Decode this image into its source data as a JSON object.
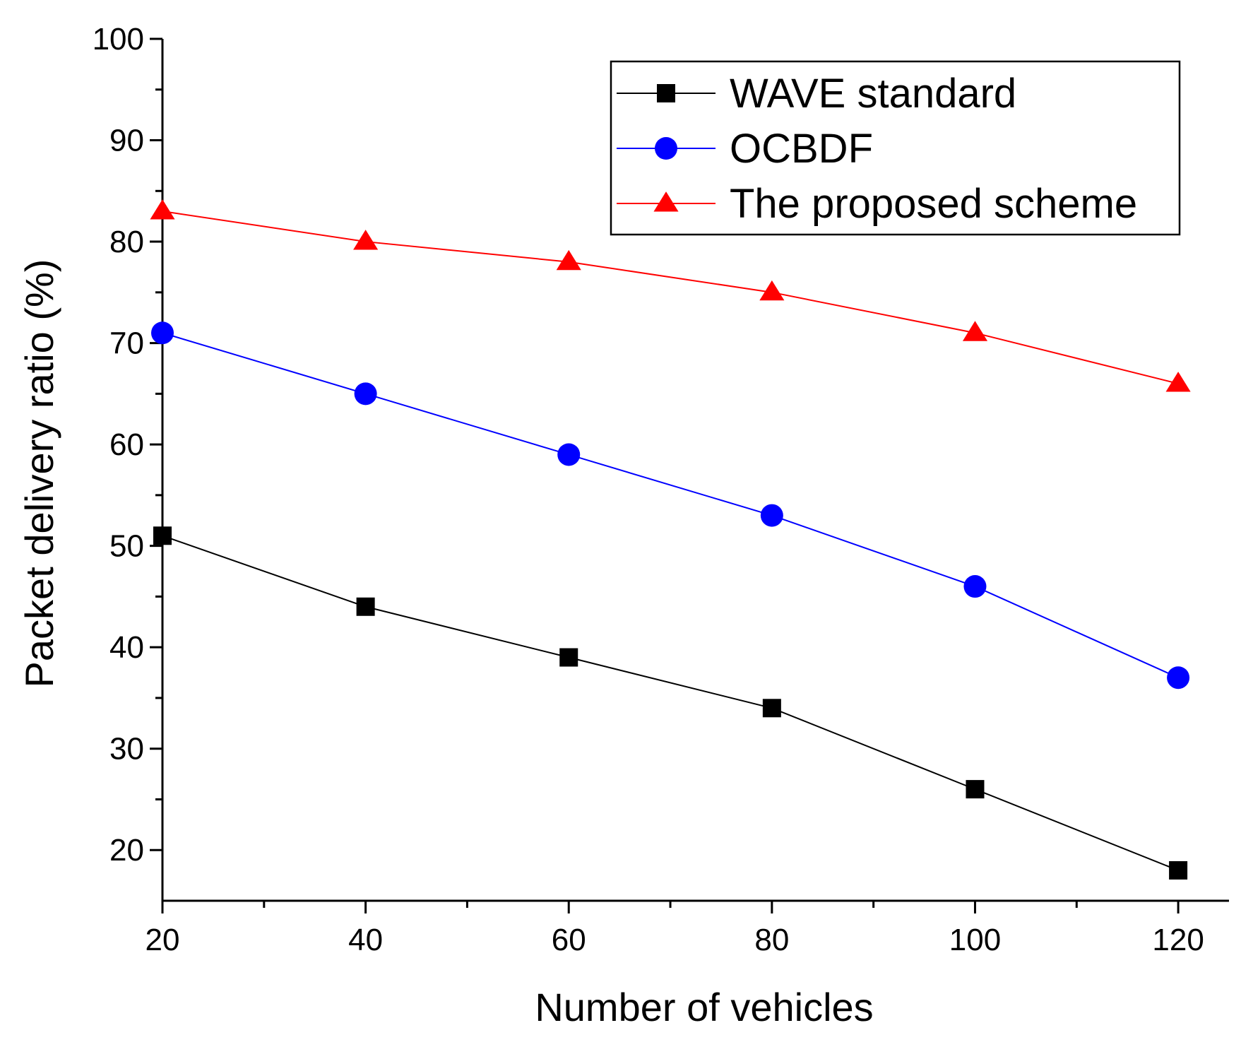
{
  "chart_data": {
    "type": "line",
    "title": "",
    "xlabel": "Number of vehicles",
    "ylabel": "Packet delivery ratio (%)",
    "x": [
      20,
      40,
      60,
      80,
      100,
      120
    ],
    "xlim": [
      20,
      125
    ],
    "ylim": [
      15,
      100
    ],
    "x_ticks": [
      20,
      40,
      60,
      80,
      100,
      120
    ],
    "y_ticks": [
      20,
      30,
      40,
      50,
      60,
      70,
      80,
      90,
      100
    ],
    "grid": false,
    "legend_position": "top-right",
    "series": [
      {
        "name": "WAVE standard",
        "values": [
          51,
          44,
          39,
          34,
          26,
          18
        ],
        "color": "#000000",
        "marker": "square"
      },
      {
        "name": "OCBDF",
        "values": [
          71,
          65,
          59,
          53,
          46,
          37
        ],
        "color": "#0000ff",
        "marker": "circle"
      },
      {
        "name": "The proposed scheme",
        "values": [
          83,
          80,
          78,
          75,
          71,
          66
        ],
        "color": "#ff0000",
        "marker": "triangle"
      }
    ]
  }
}
